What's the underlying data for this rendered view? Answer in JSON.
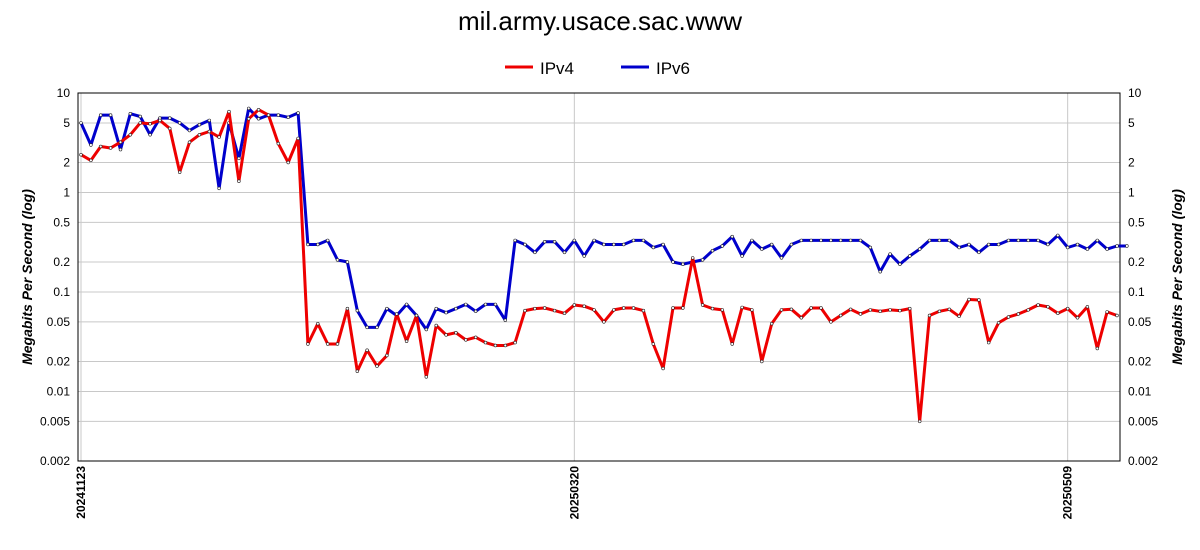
{
  "chart_data": {
    "type": "line",
    "title": "mil.army.usace.sac.www",
    "ylabel": "Megabits Per Second (log)",
    "xlabel": "",
    "yscale": "log",
    "ylim": [
      0.002,
      10
    ],
    "yticks": [
      0.002,
      0.005,
      0.01,
      0.02,
      0.05,
      0.1,
      0.2,
      0.5,
      1,
      2,
      5,
      10
    ],
    "ytick_labels": [
      "0.002",
      "0.005",
      "0.01",
      "0.02",
      "0.05",
      "0.1",
      "0.2",
      "0.5",
      "1",
      "2",
      "5",
      "10"
    ],
    "xticks": [
      {
        "index": 0,
        "label": "20241123"
      },
      {
        "index": 50,
        "label": "20250320"
      },
      {
        "index": 100,
        "label": "20250509"
      }
    ],
    "grid": true,
    "legend_position": "top-center",
    "series": [
      {
        "name": "IPv4",
        "color": "#ee0000",
        "values": [
          2.4,
          2.1,
          2.9,
          2.8,
          3.2,
          3.8,
          5.0,
          4.9,
          5.3,
          4.4,
          1.6,
          3.2,
          3.8,
          4.1,
          3.6,
          6.5,
          1.3,
          5.5,
          6.8,
          6.0,
          3.1,
          2.0,
          3.5,
          0.03,
          0.048,
          0.03,
          0.03,
          0.068,
          0.016,
          0.026,
          0.018,
          0.023,
          0.06,
          0.032,
          0.058,
          0.014,
          0.046,
          0.037,
          0.039,
          0.033,
          0.035,
          0.031,
          0.029,
          0.029,
          0.031,
          0.065,
          0.068,
          0.069,
          0.065,
          0.061,
          0.074,
          0.072,
          0.066,
          0.05,
          0.066,
          0.069,
          0.069,
          0.065,
          0.03,
          0.017,
          0.069,
          0.069,
          0.22,
          0.074,
          0.068,
          0.066,
          0.03,
          0.07,
          0.066,
          0.02,
          0.048,
          0.066,
          0.067,
          0.055,
          0.069,
          0.069,
          0.05,
          0.058,
          0.067,
          0.06,
          0.066,
          0.064,
          0.066,
          0.065,
          0.068,
          0.005,
          0.058,
          0.064,
          0.067,
          0.057,
          0.084,
          0.083,
          0.031,
          0.049,
          0.056,
          0.06,
          0.066,
          0.074,
          0.071,
          0.061,
          0.068,
          0.055,
          0.071,
          0.027,
          0.063,
          0.058
        ]
      },
      {
        "name": "IPv6",
        "color": "#0000cc",
        "values": [
          5.0,
          3.0,
          6.0,
          6.0,
          2.7,
          6.2,
          5.8,
          3.8,
          5.6,
          5.6,
          5.0,
          4.2,
          4.8,
          5.3,
          1.1,
          5.0,
          2.2,
          7.0,
          5.5,
          6.0,
          6.0,
          5.7,
          6.3,
          0.3,
          0.3,
          0.33,
          0.21,
          0.2,
          0.065,
          0.044,
          0.044,
          0.068,
          0.058,
          0.075,
          0.058,
          0.042,
          0.068,
          0.062,
          0.068,
          0.075,
          0.064,
          0.075,
          0.075,
          0.052,
          0.33,
          0.3,
          0.25,
          0.32,
          0.32,
          0.25,
          0.33,
          0.23,
          0.33,
          0.3,
          0.3,
          0.3,
          0.33,
          0.33,
          0.28,
          0.3,
          0.2,
          0.19,
          0.2,
          0.21,
          0.26,
          0.29,
          0.36,
          0.23,
          0.33,
          0.27,
          0.3,
          0.22,
          0.3,
          0.33,
          0.33,
          0.33,
          0.33,
          0.33,
          0.33,
          0.33,
          0.28,
          0.16,
          0.24,
          0.19,
          0.23,
          0.27,
          0.33,
          0.33,
          0.33,
          0.28,
          0.3,
          0.25,
          0.3,
          0.3,
          0.33,
          0.33,
          0.33,
          0.33,
          0.3,
          0.37,
          0.28,
          0.3,
          0.27,
          0.33,
          0.27,
          0.29,
          0.29
        ]
      }
    ]
  }
}
